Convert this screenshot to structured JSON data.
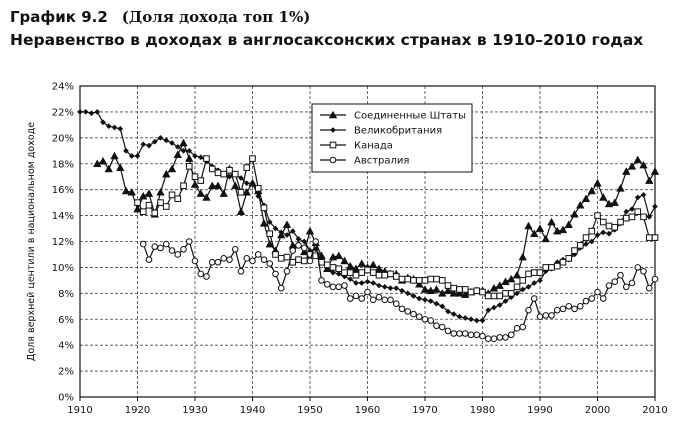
{
  "header": {
    "figure_label": "График 9.2",
    "figure_subtitle": "(Доля дохода топ 1%)",
    "title": "Неравенство в доходах в англосаксонских странах в 1910–2010 годах"
  },
  "chart_data": {
    "type": "line",
    "title": "Неравенство в доходах в англосаксонских странах в 1910–2010 годах",
    "xlabel": "",
    "ylabel": "Доля верхней центили в национальном доходе",
    "xlim": [
      1910,
      2010
    ],
    "ylim": [
      0,
      24
    ],
    "x_ticks": [
      1910,
      1920,
      1930,
      1940,
      1950,
      1960,
      1970,
      1980,
      1990,
      2000,
      2010
    ],
    "y_ticks": [
      0,
      2,
      4,
      6,
      8,
      10,
      12,
      14,
      16,
      18,
      20,
      22,
      24
    ],
    "y_tick_labels": [
      "0%",
      "2%",
      "4%",
      "6%",
      "8%",
      "10%",
      "12%",
      "14%",
      "16%",
      "18%",
      "20%",
      "22%",
      "24%"
    ],
    "grid": true,
    "legend_position": "top-center",
    "series": [
      {
        "name": "Соединенные Штаты",
        "marker": "triangle",
        "x": [
          1913,
          1914,
          1915,
          1916,
          1917,
          1918,
          1919,
          1920,
          1921,
          1922,
          1923,
          1924,
          1925,
          1926,
          1927,
          1928,
          1929,
          1930,
          1931,
          1932,
          1933,
          1934,
          1935,
          1936,
          1937,
          1938,
          1939,
          1940,
          1941,
          1942,
          1943,
          1944,
          1945,
          1946,
          1947,
          1948,
          1949,
          1950,
          1951,
          1952,
          1953,
          1954,
          1955,
          1956,
          1957,
          1958,
          1959,
          1960,
          1961,
          1962,
          1963,
          1964,
          1965,
          1966,
          1967,
          1968,
          1969,
          1970,
          1971,
          1972,
          1973,
          1974,
          1975,
          1976,
          1977,
          1978,
          1979,
          1980,
          1981,
          1982,
          1983,
          1984,
          1985,
          1986,
          1987,
          1988,
          1989,
          1990,
          1991,
          1992,
          1993,
          1994,
          1995,
          1996,
          1997,
          1998,
          1999,
          2000,
          2001,
          2002,
          2003,
          2004,
          2005,
          2006,
          2007,
          2008,
          2009,
          2010
        ],
        "values": [
          18.0,
          18.2,
          17.6,
          18.6,
          17.7,
          15.9,
          15.8,
          14.5,
          15.5,
          15.7,
          14.1,
          15.8,
          17.2,
          17.6,
          18.7,
          19.6,
          18.4,
          16.4,
          15.7,
          15.4,
          16.3,
          16.3,
          15.7,
          17.6,
          16.3,
          14.3,
          15.8,
          16.5,
          15.9,
          13.4,
          11.8,
          11.3,
          12.5,
          13.3,
          11.7,
          11.8,
          11.2,
          12.8,
          11.9,
          10.9,
          9.9,
          10.8,
          10.9,
          10.5,
          10.1,
          9.9,
          10.3,
          10.0,
          10.2,
          9.9,
          9.7,
          9.5,
          9.5,
          9.0,
          9.2,
          9.1,
          8.7,
          8.3,
          8.2,
          8.3,
          8.0,
          8.2,
          8.0,
          8.0,
          7.9,
          8.1,
          8.2,
          8.2,
          8.0,
          8.4,
          8.6,
          8.9,
          9.1,
          9.4,
          10.8,
          13.2,
          12.6,
          13.0,
          12.2,
          13.5,
          12.8,
          12.9,
          13.3,
          14.1,
          14.8,
          15.3,
          15.9,
          16.5,
          15.4,
          14.9,
          15.0,
          16.1,
          17.4,
          17.8,
          18.3,
          17.9,
          16.7,
          17.4
        ]
      },
      {
        "name": "Великобритания",
        "marker": "diamond",
        "x": [
          1910,
          1911,
          1912,
          1913,
          1914,
          1915,
          1916,
          1917,
          1918,
          1919,
          1920,
          1921,
          1922,
          1923,
          1924,
          1925,
          1926,
          1927,
          1928,
          1929,
          1930,
          1931,
          1932,
          1933,
          1934,
          1935,
          1936,
          1937,
          1938,
          1939,
          1940,
          1941,
          1942,
          1943,
          1944,
          1945,
          1946,
          1947,
          1948,
          1949,
          1950,
          1951,
          1952,
          1953,
          1954,
          1955,
          1956,
          1957,
          1958,
          1959,
          1960,
          1961,
          1962,
          1963,
          1964,
          1965,
          1966,
          1967,
          1968,
          1969,
          1970,
          1971,
          1972,
          1973,
          1974,
          1975,
          1976,
          1977,
          1978,
          1979,
          1980,
          1981,
          1982,
          1983,
          1984,
          1985,
          1986,
          1987,
          1988,
          1989,
          1990,
          1991,
          1992,
          1993,
          1994,
          1995,
          1996,
          1997,
          1998,
          1999,
          2000,
          2001,
          2002,
          2003,
          2004,
          2005,
          2006,
          2007,
          2008,
          2009,
          2010
        ],
        "values": [
          22.0,
          22.0,
          21.9,
          22.0,
          21.2,
          20.9,
          20.8,
          20.7,
          19.0,
          18.6,
          18.6,
          19.5,
          19.4,
          19.7,
          20.0,
          19.8,
          19.6,
          19.3,
          19.0,
          19.0,
          18.6,
          18.5,
          18.2,
          17.8,
          17.5,
          17.2,
          17.0,
          17.2,
          16.9,
          16.5,
          16.5,
          15.5,
          14.8,
          13.5,
          13.0,
          12.7,
          12.5,
          12.8,
          12.2,
          12.0,
          11.3,
          11.4,
          10.8,
          10.0,
          9.6,
          9.5,
          9.3,
          9.1,
          8.8,
          8.8,
          8.9,
          8.8,
          8.6,
          8.5,
          8.4,
          8.4,
          8.2,
          8.0,
          7.8,
          7.6,
          7.5,
          7.4,
          7.2,
          7.0,
          6.6,
          6.4,
          6.2,
          6.1,
          6.0,
          5.9,
          5.9,
          6.7,
          6.9,
          7.1,
          7.4,
          7.7,
          8.0,
          8.3,
          8.5,
          8.8,
          9.0,
          9.7,
          9.9,
          10.4,
          10.6,
          10.6,
          11.0,
          11.5,
          11.8,
          12.0,
          12.5,
          12.7,
          12.6,
          12.9,
          13.4,
          14.3,
          14.5,
          15.4,
          15.6,
          13.9,
          14.7
        ]
      },
      {
        "name": "Канада",
        "marker": "square",
        "x": [
          1920,
          1921,
          1922,
          1923,
          1924,
          1925,
          1926,
          1927,
          1928,
          1929,
          1930,
          1931,
          1932,
          1933,
          1934,
          1935,
          1936,
          1937,
          1938,
          1939,
          1940,
          1941,
          1942,
          1943,
          1944,
          1945,
          1946,
          1947,
          1948,
          1949,
          1950,
          1951,
          1952,
          1953,
          1954,
          1955,
          1956,
          1957,
          1958,
          1959,
          1960,
          1961,
          1962,
          1963,
          1964,
          1965,
          1966,
          1967,
          1968,
          1969,
          1970,
          1971,
          1972,
          1973,
          1974,
          1975,
          1976,
          1977,
          1978,
          1979,
          1980,
          1981,
          1982,
          1983,
          1984,
          1985,
          1986,
          1987,
          1988,
          1989,
          1990,
          1991,
          1992,
          1993,
          1994,
          1995,
          1996,
          1997,
          1998,
          1999,
          2000,
          2001,
          2002,
          2003,
          2004,
          2005,
          2006,
          2007,
          2008,
          2009,
          2010
        ],
        "values": [
          15.0,
          14.3,
          14.8,
          14.2,
          15.0,
          14.7,
          15.6,
          15.3,
          16.3,
          17.8,
          17.0,
          16.7,
          18.4,
          17.6,
          17.3,
          17.2,
          17.5,
          17.2,
          15.8,
          17.7,
          18.4,
          16.1,
          14.6,
          12.6,
          11.0,
          10.7,
          10.8,
          10.4,
          10.6,
          10.5,
          11.0,
          10.9,
          10.4,
          10.2,
          10.0,
          9.9,
          9.6,
          9.6,
          9.4,
          9.6,
          9.8,
          9.6,
          9.4,
          9.4,
          9.5,
          9.3,
          9.1,
          9.1,
          9.0,
          9.0,
          9.0,
          9.1,
          9.1,
          9.0,
          8.6,
          8.4,
          8.3,
          8.3,
          8.1,
          8.2,
          8.1,
          7.8,
          7.8,
          7.8,
          8.0,
          8.0,
          8.5,
          9.0,
          9.5,
          9.6,
          9.6,
          10.0,
          10.0,
          10.1,
          10.4,
          10.7,
          11.3,
          11.7,
          12.3,
          12.8,
          14.0,
          13.5,
          13.2,
          13.1,
          13.5,
          13.8,
          13.9,
          14.3,
          13.9,
          12.3,
          12.3
        ]
      },
      {
        "name": "Австралия",
        "marker": "circle",
        "x": [
          1921,
          1922,
          1923,
          1924,
          1925,
          1926,
          1927,
          1928,
          1929,
          1930,
          1931,
          1932,
          1933,
          1934,
          1935,
          1936,
          1937,
          1938,
          1939,
          1940,
          1941,
          1942,
          1943,
          1944,
          1945,
          1946,
          1947,
          1948,
          1949,
          1950,
          1951,
          1952,
          1953,
          1954,
          1955,
          1956,
          1957,
          1958,
          1959,
          1960,
          1961,
          1962,
          1963,
          1964,
          1965,
          1966,
          1967,
          1968,
          1969,
          1970,
          1971,
          1972,
          1973,
          1974,
          1975,
          1976,
          1977,
          1978,
          1979,
          1980,
          1981,
          1982,
          1983,
          1984,
          1985,
          1986,
          1987,
          1988,
          1989,
          1990,
          1991,
          1992,
          1993,
          1994,
          1995,
          1996,
          1997,
          1998,
          1999,
          2000,
          2001,
          2002,
          2003,
          2004,
          2005,
          2006,
          2007,
          2008,
          2009,
          2010
        ],
        "values": [
          11.8,
          10.6,
          11.6,
          11.5,
          11.8,
          11.3,
          11.0,
          11.4,
          12.0,
          10.5,
          9.5,
          9.3,
          10.4,
          10.4,
          10.7,
          10.6,
          11.4,
          9.7,
          10.7,
          10.5,
          11.0,
          10.6,
          10.3,
          9.5,
          8.4,
          9.7,
          11.3,
          11.7,
          11.5,
          10.5,
          12.0,
          9.0,
          8.7,
          8.5,
          8.5,
          8.6,
          7.6,
          7.8,
          7.6,
          8.1,
          7.5,
          7.7,
          7.5,
          7.5,
          7.2,
          6.8,
          6.6,
          6.4,
          6.2,
          6.0,
          5.9,
          5.5,
          5.4,
          5.1,
          4.9,
          4.9,
          4.9,
          4.8,
          4.8,
          4.7,
          4.5,
          4.5,
          4.6,
          4.6,
          4.8,
          5.3,
          5.4,
          6.7,
          7.6,
          6.2,
          6.3,
          6.3,
          6.7,
          6.8,
          7.0,
          6.8,
          7.0,
          7.4,
          7.6,
          8.1,
          7.6,
          8.6,
          8.9,
          9.4,
          8.5,
          8.8,
          10.0,
          9.7,
          8.4,
          9.1
        ]
      }
    ]
  }
}
